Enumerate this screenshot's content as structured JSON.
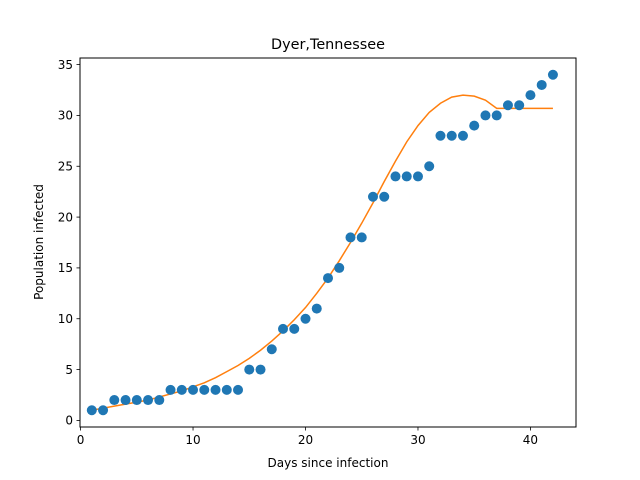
{
  "chart_data": {
    "type": "scatter",
    "title": "Dyer,Tennessee",
    "xlabel": "Days since infection",
    "ylabel": "Population infected",
    "xlim": [
      -0.05,
      44.05
    ],
    "ylim": [
      -0.65,
      35.65
    ],
    "x_ticks": [
      0,
      10,
      20,
      30,
      40
    ],
    "y_ticks": [
      0,
      5,
      10,
      15,
      20,
      25,
      30,
      35
    ],
    "grid": false,
    "colors": {
      "points": "#1f77b4",
      "fit": "#ff7f0e"
    },
    "series": [
      {
        "type": "scatter",
        "x": [
          1,
          2,
          3,
          4,
          5,
          6,
          7,
          8,
          9,
          10,
          11,
          12,
          13,
          14,
          15,
          16,
          17,
          18,
          19,
          20,
          21,
          22,
          23,
          24,
          25,
          26,
          27,
          28,
          29,
          30,
          31,
          32,
          33,
          34,
          35,
          36,
          37,
          38,
          39,
          40,
          41,
          42
        ],
        "y": [
          1,
          1,
          2,
          2,
          2,
          2,
          2,
          3,
          3,
          3,
          3,
          3,
          3,
          3,
          5,
          5,
          7,
          9,
          9,
          10,
          11,
          14,
          15,
          18,
          18,
          22,
          22,
          24,
          24,
          24,
          25,
          28,
          28,
          28,
          29,
          30,
          30,
          31,
          31,
          32,
          33,
          34
        ]
      },
      {
        "type": "line",
        "x": [
          1,
          2,
          3,
          4,
          5,
          6,
          7,
          8,
          9,
          10,
          11,
          12,
          13,
          14,
          15,
          16,
          17,
          18,
          19,
          20,
          21,
          22,
          23,
          24,
          25,
          26,
          27,
          28,
          29,
          30,
          31,
          32,
          33,
          34,
          35,
          36,
          37,
          38,
          39,
          40,
          41,
          42
        ],
        "y": [
          1.0,
          1.2,
          1.4,
          1.6,
          1.8,
          2.0,
          2.3,
          2.6,
          2.9,
          3.3,
          3.7,
          4.2,
          4.8,
          5.4,
          6.1,
          6.9,
          7.8,
          8.8,
          9.9,
          11.1,
          12.5,
          14.0,
          15.7,
          17.5,
          19.4,
          21.4,
          23.5,
          25.5,
          27.4,
          29.0,
          30.3,
          31.2,
          31.8,
          32.0,
          31.9,
          31.5,
          30.7,
          30.7,
          30.7,
          30.7,
          30.7,
          30.7
        ]
      }
    ]
  }
}
